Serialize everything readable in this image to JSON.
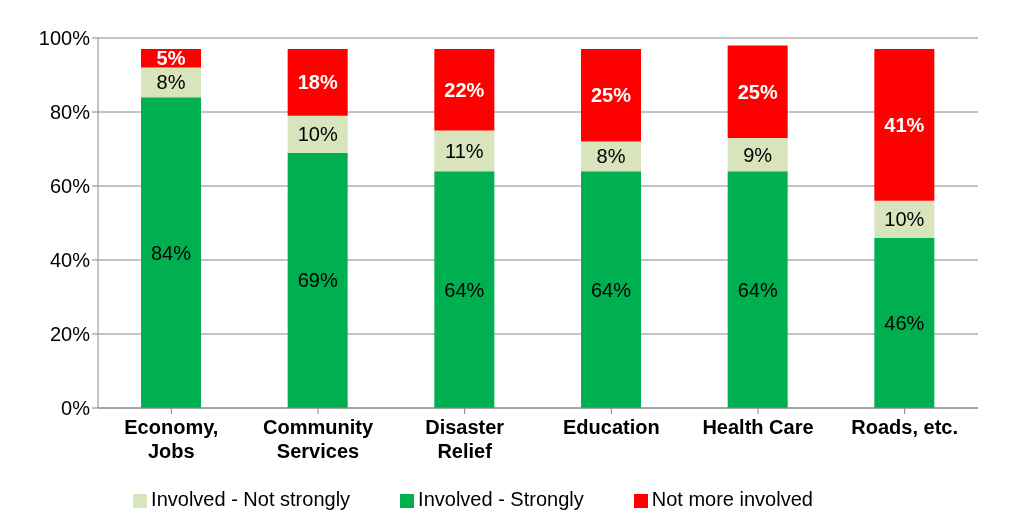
{
  "chart_data": {
    "type": "bar",
    "stacked": true,
    "categories": [
      "Economy, Jobs",
      "Community Services",
      "Disaster Relief",
      "Education",
      "Health Care",
      "Roads, etc."
    ],
    "series": [
      {
        "name": "Involved - Strongly",
        "color": "#00b050",
        "values": [
          84,
          69,
          64,
          64,
          64,
          46
        ],
        "value_labels": [
          "84%",
          "69%",
          "64%",
          "64%",
          "64%",
          "46%"
        ]
      },
      {
        "name": "Involved - Not strongly",
        "color": "#d8e4bc",
        "values": [
          8,
          10,
          11,
          8,
          9,
          10
        ],
        "value_labels": [
          "8%",
          "10%",
          "11%",
          "8%",
          "9%",
          "10%"
        ]
      },
      {
        "name": "Not more involved",
        "color": "#ff0000",
        "values": [
          5,
          18,
          22,
          25,
          25,
          41
        ],
        "value_labels": [
          "5%",
          "18%",
          "22%",
          "25%",
          "25%",
          "41%"
        ]
      }
    ],
    "ylim": [
      0,
      100
    ],
    "yticks": [
      {
        "value": 0,
        "label": "0%"
      },
      {
        "value": 20,
        "label": "20%"
      },
      {
        "value": 40,
        "label": "40%"
      },
      {
        "value": 60,
        "label": "60%"
      },
      {
        "value": 80,
        "label": "80%"
      },
      {
        "value": 100,
        "label": "100%"
      }
    ],
    "grid": "y",
    "legend": "bottom"
  }
}
